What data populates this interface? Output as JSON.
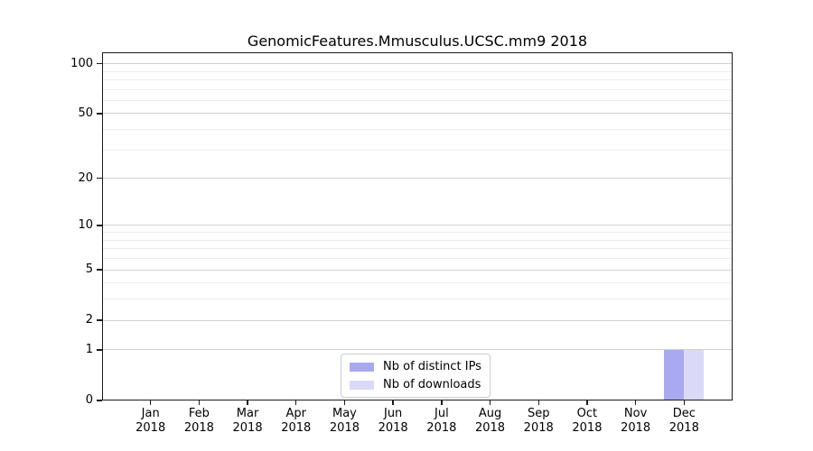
{
  "chart_data": {
    "type": "bar",
    "title": "GenomicFeatures.Mmusculus.UCSC.mm9 2018",
    "x_axis": {
      "categories": [
        "Jan",
        "Feb",
        "Mar",
        "Apr",
        "May",
        "Jun",
        "Jul",
        "Aug",
        "Sep",
        "Oct",
        "Nov",
        "Dec"
      ],
      "year": "2018"
    },
    "y_axis": {
      "scale": "log1p",
      "ticks": [
        0,
        1,
        2,
        5,
        10,
        20,
        50,
        100
      ],
      "minor_gridlines": [
        3,
        4,
        6,
        7,
        8,
        9,
        30,
        40,
        60,
        70,
        80,
        90
      ],
      "max": 117
    },
    "series": [
      {
        "name": "Nb of distinct IPs",
        "color": "#a9a9f2",
        "values": [
          0,
          0,
          0,
          0,
          0,
          0,
          0,
          0,
          0,
          0,
          0,
          1
        ]
      },
      {
        "name": "Nb of downloads",
        "color": "#dadaf8",
        "values": [
          0,
          0,
          0,
          0,
          0,
          0,
          0,
          0,
          0,
          0,
          0,
          1
        ]
      }
    ],
    "legend_position": "bottom-center",
    "grid": true
  },
  "colors": {
    "axis": "#1a1a1a",
    "grid_major": "#d0d0d0",
    "grid_minor": "#ececec",
    "background": "#ffffff"
  }
}
